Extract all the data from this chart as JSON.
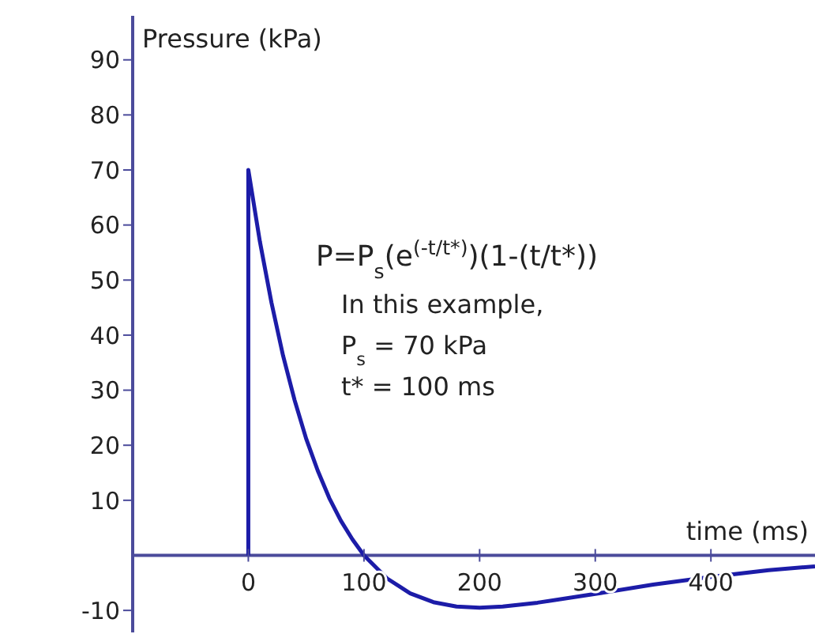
{
  "chart_data": {
    "type": "line",
    "xlabel": "time (ms)",
    "ylabel": "Pressure (kPa)",
    "annotations": [
      "P=P$_{s}$(e$^{(-t/t*)}$)(1-(t/t*))",
      "In this example,",
      "P$_{s}$ = 70 kPa",
      "t* = 100 ms"
    ],
    "series": [
      {
        "color": "#1c1ca8",
        "x": [
          0,
          0,
          10,
          20,
          30,
          40,
          50,
          60,
          70,
          80,
          90,
          100,
          120,
          140,
          160,
          180,
          200,
          220,
          250,
          300,
          350,
          400,
          450,
          490
        ],
        "values": [
          0,
          70,
          57,
          45.9,
          36.3,
          28.2,
          21.2,
          15.4,
          10.4,
          6.3,
          2.9,
          0,
          -4.2,
          -6.9,
          -8.5,
          -9.3,
          -9.5,
          -9.3,
          -8.6,
          -7,
          -5.3,
          -3.9,
          -2.7,
          -2
        ]
      }
    ],
    "xlim": [
      -100,
      490
    ],
    "ylim": [
      -14,
      98
    ],
    "xticks": [
      0,
      100,
      200,
      300,
      400
    ],
    "yticks": [
      -10,
      10,
      20,
      30,
      40,
      50,
      60,
      70,
      80,
      90
    ],
    "grid": false,
    "legend": false,
    "marker": "none",
    "line_style": "solid"
  }
}
